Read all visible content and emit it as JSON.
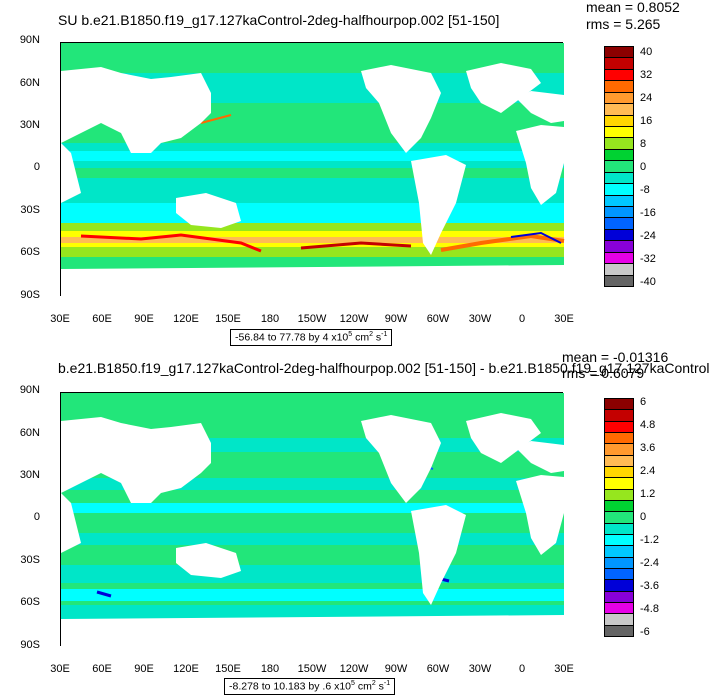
{
  "panels": [
    {
      "title": "SU b.e21.B1850.f19_g17.127kaControl-2deg-halfhourpop.002 [51-150]",
      "mean_text": "mean = 0.8052",
      "rms_text": "rms = 5.265",
      "range_text": "-56.84 to 77.78 by 4 x10",
      "range_exp": "5",
      "range_unit": " cm",
      "range_unit_exp": "2",
      "range_unit_tail": " s",
      "range_unit_tail_exp": "-1",
      "lat_ticks": [
        "90N",
        "60N",
        "30N",
        "0",
        "30S",
        "60S",
        "90S"
      ],
      "lon_ticks": [
        "30E",
        "60E",
        "90E",
        "120E",
        "150E",
        "180",
        "150W",
        "120W",
        "90W",
        "60W",
        "30W",
        "0",
        "30E"
      ],
      "colorbar_labels": [
        "40",
        "32",
        "24",
        "16",
        "8",
        "0",
        "-8",
        "-16",
        "-24",
        "-32",
        "-40"
      ]
    },
    {
      "title": "b.e21.B1850.f19_g17.127kaControl-2deg-halfhourpop.002 [51-150] - b.e21.B1850.f19_g17.127kaControl",
      "mean_text": "mean = -0.01316",
      "rms_text": "rms = 0.6079",
      "range_text": "-8.278 to 10.183 by .6 x10",
      "range_exp": "5",
      "range_unit": " cm",
      "range_unit_exp": "2",
      "range_unit_tail": " s",
      "range_unit_tail_exp": "-1",
      "lat_ticks": [
        "90N",
        "60N",
        "30N",
        "0",
        "30S",
        "60S",
        "90S"
      ],
      "lon_ticks": [
        "30E",
        "60E",
        "90E",
        "120E",
        "150E",
        "180",
        "150W",
        "120W",
        "90W",
        "60W",
        "30W",
        "0",
        "30E"
      ],
      "colorbar_labels": [
        "6",
        "4.8",
        "3.6",
        "2.4",
        "1.2",
        "0",
        "-1.2",
        "-2.4",
        "-3.6",
        "-4.8",
        "-6"
      ]
    }
  ],
  "colors": {
    "levels": [
      "#8b0000",
      "#c40000",
      "#ff0000",
      "#ff6a00",
      "#ff9a2e",
      "#ffbb55",
      "#ffd600",
      "#ffff00",
      "#96e61e",
      "#00d232",
      "#22e67a",
      "#00e6c8",
      "#00ffff",
      "#00c8ff",
      "#0096ff",
      "#0064ff",
      "#0000d8",
      "#8800d8",
      "#e600e6",
      "#c8c8c8",
      "#646464"
    ],
    "ocean_base": "#00e6c8",
    "land": "#ffffff"
  }
}
